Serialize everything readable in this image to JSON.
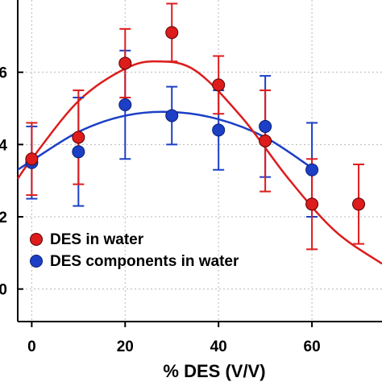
{
  "chart_data": {
    "type": "scatter",
    "title": "",
    "xlabel": "% DES (V/V)",
    "ylabel": "",
    "xlim": [
      -3,
      75
    ],
    "ylim": [
      -0.9,
      8
    ],
    "x_ticks": [
      0,
      20,
      40,
      60
    ],
    "y_ticks": [
      0,
      2,
      4,
      6
    ],
    "x_tick_labels": [
      "0",
      "20",
      "40",
      "60"
    ],
    "y_tick_labels": [
      "0",
      "2",
      "4",
      "6"
    ],
    "grid": true,
    "legend_position": "bottom-left",
    "series": [
      {
        "name": "DES in water",
        "color": "#dd1c1c",
        "x": [
          0,
          10,
          20,
          30,
          40,
          50,
          60,
          70
        ],
        "y": [
          3.6,
          4.2,
          6.25,
          7.1,
          5.65,
          4.1,
          2.35,
          2.35
        ],
        "err": [
          1.0,
          1.3,
          0.95,
          0.8,
          0.8,
          1.4,
          1.25,
          1.1
        ],
        "fit": [
          [
            -3,
            3.05
          ],
          [
            0,
            3.6
          ],
          [
            10,
            5.2
          ],
          [
            20,
            6.1
          ],
          [
            27,
            6.3
          ],
          [
            35,
            6.05
          ],
          [
            45,
            4.75
          ],
          [
            55,
            3.05
          ],
          [
            65,
            1.6
          ],
          [
            75,
            0.7
          ]
        ]
      },
      {
        "name": "DES components in water",
        "color": "#1c3fc6",
        "x": [
          0,
          10,
          20,
          30,
          40,
          50,
          60
        ],
        "y": [
          3.5,
          3.8,
          5.1,
          4.8,
          4.4,
          4.5,
          3.3
        ],
        "err": [
          1.0,
          1.5,
          1.5,
          0.8,
          1.1,
          1.4,
          1.3
        ],
        "fit": [
          [
            -3,
            3.3
          ],
          [
            0,
            3.55
          ],
          [
            10,
            4.35
          ],
          [
            20,
            4.8
          ],
          [
            30,
            4.9
          ],
          [
            40,
            4.7
          ],
          [
            50,
            4.2
          ],
          [
            60,
            3.35
          ]
        ]
      }
    ]
  }
}
